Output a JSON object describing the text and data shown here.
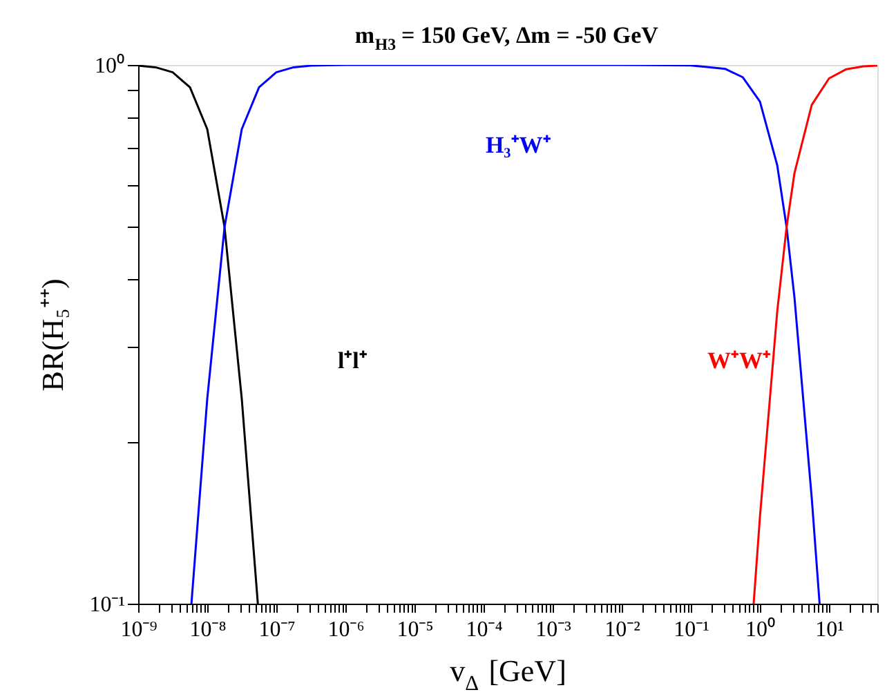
{
  "chart_data": {
    "type": "line",
    "title": "m$_{H3}$ = 150 GeV, Δm = -50 GeV",
    "xlabel": "v$_{Δ}$ [GeV]",
    "ylabel": "BR(H₅⁺⁺)",
    "log": "xy",
    "grid": false,
    "legend": false,
    "xlim": [
      1e-09,
      50
    ],
    "ylim": [
      0.1,
      1
    ],
    "xticks": [
      {
        "value": 1e-09,
        "label": "10⁻⁹"
      },
      {
        "value": 2e-09,
        "label": null
      },
      {
        "value": 3e-09,
        "label": null
      },
      {
        "value": 4e-09,
        "label": null
      },
      {
        "value": 5e-09,
        "label": null
      },
      {
        "value": 6e-09,
        "label": null
      },
      {
        "value": 7e-09,
        "label": null
      },
      {
        "value": 8e-09,
        "label": null
      },
      {
        "value": 9e-09,
        "label": null
      },
      {
        "value": 1e-08,
        "label": "10⁻⁸"
      },
      {
        "value": 2e-08,
        "label": null
      },
      {
        "value": 3e-08,
        "label": null
      },
      {
        "value": 4e-08,
        "label": null
      },
      {
        "value": 5e-08,
        "label": null
      },
      {
        "value": 6e-08,
        "label": null
      },
      {
        "value": 7e-08,
        "label": null
      },
      {
        "value": 8e-08,
        "label": null
      },
      {
        "value": 9e-08,
        "label": null
      },
      {
        "value": 1e-07,
        "label": "10⁻⁷"
      },
      {
        "value": 2e-07,
        "label": null
      },
      {
        "value": 3e-07,
        "label": null
      },
      {
        "value": 4e-07,
        "label": null
      },
      {
        "value": 5e-07,
        "label": null
      },
      {
        "value": 6e-07,
        "label": null
      },
      {
        "value": 7e-07,
        "label": null
      },
      {
        "value": 8e-07,
        "label": null
      },
      {
        "value": 9e-07,
        "label": null
      },
      {
        "value": 1e-06,
        "label": "10⁻⁶"
      },
      {
        "value": 2e-06,
        "label": null
      },
      {
        "value": 3e-06,
        "label": null
      },
      {
        "value": 4e-06,
        "label": null
      },
      {
        "value": 5e-06,
        "label": null
      },
      {
        "value": 6e-06,
        "label": null
      },
      {
        "value": 7e-06,
        "label": null
      },
      {
        "value": 8e-06,
        "label": null
      },
      {
        "value": 9e-06,
        "label": null
      },
      {
        "value": 1e-05,
        "label": "10⁻⁵"
      },
      {
        "value": 2e-05,
        "label": null
      },
      {
        "value": 3e-05,
        "label": null
      },
      {
        "value": 4e-05,
        "label": null
      },
      {
        "value": 5e-05,
        "label": null
      },
      {
        "value": 6e-05,
        "label": null
      },
      {
        "value": 7e-05,
        "label": null
      },
      {
        "value": 8e-05,
        "label": null
      },
      {
        "value": 9e-05,
        "label": null
      },
      {
        "value": 0.0001,
        "label": "10⁻⁴"
      },
      {
        "value": 0.0002,
        "label": null
      },
      {
        "value": 0.0003,
        "label": null
      },
      {
        "value": 0.0004,
        "label": null
      },
      {
        "value": 0.0005,
        "label": null
      },
      {
        "value": 0.0006,
        "label": null
      },
      {
        "value": 0.0007,
        "label": null
      },
      {
        "value": 0.0008,
        "label": null
      },
      {
        "value": 0.0009,
        "label": null
      },
      {
        "value": 0.001,
        "label": "10⁻³"
      },
      {
        "value": 0.002,
        "label": null
      },
      {
        "value": 0.003,
        "label": null
      },
      {
        "value": 0.004,
        "label": null
      },
      {
        "value": 0.005,
        "label": null
      },
      {
        "value": 0.006,
        "label": null
      },
      {
        "value": 0.007,
        "label": null
      },
      {
        "value": 0.008,
        "label": null
      },
      {
        "value": 0.009,
        "label": null
      },
      {
        "value": 0.01,
        "label": "10⁻²"
      },
      {
        "value": 0.02,
        "label": null
      },
      {
        "value": 0.03,
        "label": null
      },
      {
        "value": 0.04,
        "label": null
      },
      {
        "value": 0.05,
        "label": null
      },
      {
        "value": 0.06,
        "label": null
      },
      {
        "value": 0.07,
        "label": null
      },
      {
        "value": 0.08,
        "label": null
      },
      {
        "value": 0.09,
        "label": null
      },
      {
        "value": 0.1,
        "label": "10⁻¹"
      },
      {
        "value": 0.2,
        "label": null
      },
      {
        "value": 0.3,
        "label": null
      },
      {
        "value": 0.4,
        "label": null
      },
      {
        "value": 0.5,
        "label": null
      },
      {
        "value": 0.6,
        "label": null
      },
      {
        "value": 0.7,
        "label": null
      },
      {
        "value": 0.8,
        "label": null
      },
      {
        "value": 0.9,
        "label": null
      },
      {
        "value": 1,
        "label": "10⁰"
      },
      {
        "value": 2,
        "label": null
      },
      {
        "value": 3,
        "label": null
      },
      {
        "value": 4,
        "label": null
      },
      {
        "value": 5,
        "label": null
      },
      {
        "value": 6,
        "label": null
      },
      {
        "value": 7,
        "label": null
      },
      {
        "value": 8,
        "label": null
      },
      {
        "value": 9,
        "label": null
      },
      {
        "value": 10,
        "label": "10¹"
      },
      {
        "value": 20,
        "label": null
      },
      {
        "value": 30,
        "label": null
      },
      {
        "value": 40,
        "label": null
      },
      {
        "value": 50,
        "label": null
      }
    ],
    "yticks": [
      {
        "value": 0.1,
        "label": "10⁻¹"
      },
      {
        "value": 0.2,
        "label": null
      },
      {
        "value": 0.3,
        "label": null
      },
      {
        "value": 0.4,
        "label": null
      },
      {
        "value": 0.5,
        "label": null
      },
      {
        "value": 0.6,
        "label": null
      },
      {
        "value": 0.7,
        "label": null
      },
      {
        "value": 0.8,
        "label": null
      },
      {
        "value": 0.9,
        "label": null
      },
      {
        "value": 1,
        "label": "10⁰"
      }
    ],
    "series": [
      {
        "name": "l⁺l⁺",
        "color": "#000000",
        "x": [
          1e-09,
          1.78e-09,
          3.16e-09,
          5.62e-09,
          1e-08,
          1.78e-08,
          3.16e-08,
          5.4e-08
        ],
        "values": [
          0.997,
          0.99,
          0.969,
          0.909,
          0.76,
          0.5,
          0.24,
          0.1
        ]
      },
      {
        "name": "H₃⁺W⁺",
        "color": "#0000ff",
        "x": [
          5.9e-09,
          1e-08,
          1.78e-08,
          3.16e-08,
          5.62e-08,
          1e-07,
          1.78e-07,
          3.16e-07,
          1e-06,
          1e-05,
          0.0001,
          0.001,
          0.01,
          0.1,
          0.316,
          0.562,
          1,
          1.78,
          2.43,
          3.16,
          5.62,
          7.3
        ],
        "values": [
          0.1,
          0.24,
          0.5,
          0.76,
          0.909,
          0.969,
          0.99,
          0.997,
          1,
          1,
          1,
          1,
          1,
          0.998,
          0.983,
          0.949,
          0.855,
          0.651,
          0.5,
          0.37,
          0.157,
          0.1
        ]
      },
      {
        "name": "W⁺W⁺",
        "color": "#ff0000",
        "x": [
          0.81,
          1,
          1.78,
          2.43,
          3.16,
          5.62,
          10,
          17.8,
          31.6,
          50
        ],
        "values": [
          0.1,
          0.145,
          0.349,
          0.5,
          0.63,
          0.843,
          0.944,
          0.982,
          0.994,
          0.997
        ]
      }
    ]
  }
}
